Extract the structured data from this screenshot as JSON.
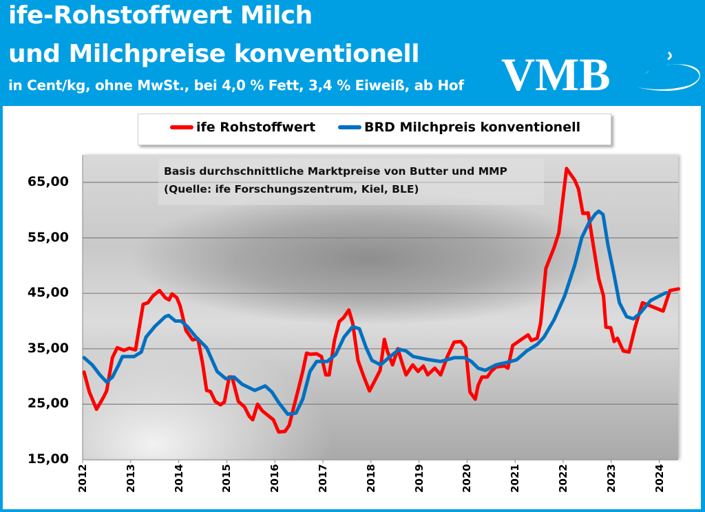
{
  "header": {
    "title_line1": "ife-Rohstoffwert Milch",
    "title_line2": "und Milchpreise konventionell",
    "subtitle": "in Cent/kg, ohne MwSt., bei 4,0 % Fett, 3,4 % Eiweiß, ab Hof",
    "logo_text": "VMB",
    "brand_color": "#009fe3"
  },
  "chart_data": {
    "type": "line",
    "title": "",
    "xlabel": "",
    "ylabel": "",
    "annotation": [
      "Basis durchschnittliche Marktpreise von Butter und MMP",
      "(Quelle: ife Forschungszentrum, Kiel, BLE)"
    ],
    "legend_position": "top",
    "grid": true,
    "ylim": [
      15,
      70
    ],
    "xlim": [
      2012,
      2024.4
    ],
    "y_ticks": [
      15,
      25,
      35,
      45,
      55,
      65
    ],
    "y_tick_labels": [
      "15,00",
      "25,00",
      "35,00",
      "45,00",
      "55,00",
      "65,00"
    ],
    "x_tick_labels": [
      "2012",
      "2013",
      "2014",
      "2015",
      "2016",
      "2017",
      "2018",
      "2019",
      "2020",
      "2021",
      "2022",
      "2023",
      "2024"
    ],
    "series": [
      {
        "name": "ife Rohstoffwert",
        "color": "#ff0000",
        "points": [
          [
            2012.03,
            30.8
          ],
          [
            2012.14,
            27.2
          ],
          [
            2012.29,
            24.1
          ],
          [
            2012.43,
            26.2
          ],
          [
            2012.5,
            27.4
          ],
          [
            2012.62,
            33.4
          ],
          [
            2012.72,
            35.2
          ],
          [
            2012.86,
            34.7
          ],
          [
            2012.97,
            35.1
          ],
          [
            2013.1,
            34.8
          ],
          [
            2013.26,
            43.0
          ],
          [
            2013.36,
            43.3
          ],
          [
            2013.46,
            44.5
          ],
          [
            2013.6,
            45.5
          ],
          [
            2013.72,
            44.2
          ],
          [
            2013.8,
            43.8
          ],
          [
            2013.86,
            44.9
          ],
          [
            2013.96,
            44.2
          ],
          [
            2014.03,
            42.7
          ],
          [
            2014.15,
            38.3
          ],
          [
            2014.29,
            36.6
          ],
          [
            2014.4,
            36.8
          ],
          [
            2014.5,
            32.2
          ],
          [
            2014.58,
            27.5
          ],
          [
            2014.66,
            27.3
          ],
          [
            2014.76,
            25.5
          ],
          [
            2014.87,
            24.9
          ],
          [
            2014.95,
            25.4
          ],
          [
            2015.05,
            29.9
          ],
          [
            2015.11,
            29.9
          ],
          [
            2015.24,
            25.5
          ],
          [
            2015.37,
            24.5
          ],
          [
            2015.47,
            22.8
          ],
          [
            2015.54,
            22.2
          ],
          [
            2015.64,
            25.0
          ],
          [
            2015.74,
            23.8
          ],
          [
            2015.84,
            23.1
          ],
          [
            2015.97,
            22.2
          ],
          [
            2016.08,
            20.0
          ],
          [
            2016.21,
            20.1
          ],
          [
            2016.3,
            21.2
          ],
          [
            2016.4,
            24.7
          ],
          [
            2016.48,
            27.4
          ],
          [
            2016.58,
            30.9
          ],
          [
            2016.66,
            34.2
          ],
          [
            2016.74,
            34.0
          ],
          [
            2016.87,
            34.1
          ],
          [
            2016.97,
            33.6
          ],
          [
            2017.06,
            30.3
          ],
          [
            2017.13,
            30.3
          ],
          [
            2017.24,
            36.5
          ],
          [
            2017.34,
            39.9
          ],
          [
            2017.43,
            40.6
          ],
          [
            2017.54,
            42.0
          ],
          [
            2017.62,
            39.6
          ],
          [
            2017.73,
            32.9
          ],
          [
            2017.85,
            30.0
          ],
          [
            2017.97,
            27.4
          ],
          [
            2018.09,
            29.4
          ],
          [
            2018.19,
            31.1
          ],
          [
            2018.28,
            36.7
          ],
          [
            2018.34,
            34.6
          ],
          [
            2018.45,
            32.1
          ],
          [
            2018.56,
            35.0
          ],
          [
            2018.66,
            32.1
          ],
          [
            2018.73,
            30.3
          ],
          [
            2018.87,
            32.1
          ],
          [
            2018.98,
            30.9
          ],
          [
            2019.09,
            31.9
          ],
          [
            2019.18,
            30.3
          ],
          [
            2019.33,
            31.5
          ],
          [
            2019.45,
            30.3
          ],
          [
            2019.59,
            33.6
          ],
          [
            2019.73,
            36.2
          ],
          [
            2019.87,
            36.3
          ],
          [
            2019.97,
            35.2
          ],
          [
            2020.06,
            27.2
          ],
          [
            2020.17,
            25.9
          ],
          [
            2020.23,
            28.4
          ],
          [
            2020.31,
            29.9
          ],
          [
            2020.42,
            29.9
          ],
          [
            2020.5,
            30.9
          ],
          [
            2020.6,
            31.7
          ],
          [
            2020.78,
            31.9
          ],
          [
            2020.85,
            31.5
          ],
          [
            2020.95,
            35.6
          ],
          [
            2021.1,
            36.5
          ],
          [
            2021.27,
            37.5
          ],
          [
            2021.34,
            36.5
          ],
          [
            2021.46,
            36.9
          ],
          [
            2021.53,
            39.6
          ],
          [
            2021.64,
            49.5
          ],
          [
            2021.81,
            53.2
          ],
          [
            2021.91,
            55.9
          ],
          [
            2022.07,
            67.5
          ],
          [
            2022.24,
            65.4
          ],
          [
            2022.32,
            63.8
          ],
          [
            2022.41,
            59.4
          ],
          [
            2022.52,
            59.5
          ],
          [
            2022.6,
            55.1
          ],
          [
            2022.74,
            47.6
          ],
          [
            2022.84,
            44.5
          ],
          [
            2022.89,
            38.9
          ],
          [
            2022.99,
            38.8
          ],
          [
            2023.06,
            36.3
          ],
          [
            2023.13,
            36.9
          ],
          [
            2023.25,
            34.6
          ],
          [
            2023.37,
            34.4
          ],
          [
            2023.5,
            39.0
          ],
          [
            2023.65,
            43.3
          ],
          [
            2023.82,
            42.7
          ],
          [
            2024.08,
            41.8
          ],
          [
            2024.22,
            45.5
          ],
          [
            2024.4,
            45.8
          ]
        ]
      },
      {
        "name": "BRD Milchpreis konventionell",
        "color": "#0070c0",
        "points": [
          [
            2012.03,
            33.4
          ],
          [
            2012.2,
            32.1
          ],
          [
            2012.36,
            30.3
          ],
          [
            2012.5,
            29.0
          ],
          [
            2012.62,
            29.9
          ],
          [
            2012.75,
            32.1
          ],
          [
            2012.83,
            33.6
          ],
          [
            2013.07,
            33.6
          ],
          [
            2013.22,
            34.4
          ],
          [
            2013.32,
            37.1
          ],
          [
            2013.5,
            39.0
          ],
          [
            2013.72,
            40.8
          ],
          [
            2013.79,
            41.0
          ],
          [
            2013.93,
            40.0
          ],
          [
            2014.05,
            40.0
          ],
          [
            2014.18,
            39.0
          ],
          [
            2014.36,
            37.1
          ],
          [
            2014.58,
            35.2
          ],
          [
            2014.8,
            30.9
          ],
          [
            2014.98,
            29.6
          ],
          [
            2015.15,
            29.9
          ],
          [
            2015.32,
            28.6
          ],
          [
            2015.58,
            27.5
          ],
          [
            2015.8,
            28.3
          ],
          [
            2015.94,
            27.2
          ],
          [
            2016.08,
            25.3
          ],
          [
            2016.27,
            23.2
          ],
          [
            2016.44,
            23.4
          ],
          [
            2016.58,
            25.9
          ],
          [
            2016.73,
            30.9
          ],
          [
            2016.87,
            32.7
          ],
          [
            2017.09,
            32.7
          ],
          [
            2017.27,
            34.0
          ],
          [
            2017.44,
            37.1
          ],
          [
            2017.62,
            39.0
          ],
          [
            2017.76,
            38.6
          ],
          [
            2017.9,
            35.2
          ],
          [
            2018.02,
            32.9
          ],
          [
            2018.2,
            32.1
          ],
          [
            2018.37,
            33.4
          ],
          [
            2018.59,
            34.9
          ],
          [
            2018.73,
            34.6
          ],
          [
            2018.88,
            33.6
          ],
          [
            2019.16,
            33.1
          ],
          [
            2019.45,
            32.7
          ],
          [
            2019.74,
            33.4
          ],
          [
            2019.95,
            33.4
          ],
          [
            2020.09,
            32.7
          ],
          [
            2020.23,
            31.5
          ],
          [
            2020.38,
            31.1
          ],
          [
            2020.6,
            32.1
          ],
          [
            2020.81,
            32.5
          ],
          [
            2021.03,
            33.0
          ],
          [
            2021.24,
            34.6
          ],
          [
            2021.46,
            35.8
          ],
          [
            2021.6,
            37.1
          ],
          [
            2021.81,
            40.2
          ],
          [
            2022.03,
            44.5
          ],
          [
            2022.24,
            50.1
          ],
          [
            2022.39,
            55.1
          ],
          [
            2022.53,
            57.6
          ],
          [
            2022.67,
            59.3
          ],
          [
            2022.74,
            59.8
          ],
          [
            2022.83,
            59.2
          ],
          [
            2022.93,
            53.8
          ],
          [
            2023.06,
            48.3
          ],
          [
            2023.17,
            43.3
          ],
          [
            2023.32,
            40.8
          ],
          [
            2023.46,
            40.4
          ],
          [
            2023.6,
            41.4
          ],
          [
            2023.82,
            43.7
          ],
          [
            2024.11,
            45.0
          ],
          [
            2024.15,
            45.1
          ]
        ]
      }
    ]
  }
}
